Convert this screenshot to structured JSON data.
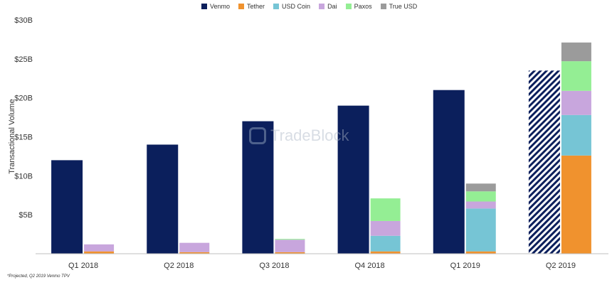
{
  "legend": {
    "items": [
      {
        "label": "Venmo",
        "color": "#0b1f5c"
      },
      {
        "label": "Tether",
        "color": "#f0922e"
      },
      {
        "label": "USD Coin",
        "color": "#76c5d5"
      },
      {
        "label": "Dai",
        "color": "#c8a6dd"
      },
      {
        "label": "Paxos",
        "color": "#94ee94"
      },
      {
        "label": "True USD",
        "color": "#9b9b9b"
      }
    ]
  },
  "footnote": "*Projected, Q2 2019 Venmo TPV",
  "watermark": "TradeBlock",
  "chart_data": {
    "type": "bar",
    "title": "",
    "xlabel": "",
    "ylabel": "Transactional Volume",
    "ylim": [
      0,
      30
    ],
    "yticks": [
      "$30B",
      "$25B",
      "$20B",
      "$15B",
      "$10B",
      "$5B"
    ],
    "ytick_values": [
      30,
      25,
      20,
      15,
      10,
      5
    ],
    "categories": [
      "Q1 2018",
      "Q2 2018",
      "Q3 2018",
      "Q4 2018",
      "Q1 2019",
      "Q2 2019"
    ],
    "series": [
      {
        "name": "Venmo",
        "values": [
          12,
          14,
          17,
          19,
          21,
          23.5
        ],
        "projected": [
          false,
          false,
          false,
          false,
          false,
          true
        ],
        "color": "#0b1f5c"
      },
      {
        "name": "Tether",
        "values": [
          0.3,
          0.2,
          0.2,
          0.3,
          0.3,
          12.6
        ],
        "color": "#f0922e",
        "stack": "stablecoins"
      },
      {
        "name": "USD Coin",
        "values": [
          0,
          0,
          0,
          2,
          5.5,
          5.2
        ],
        "color": "#76c5d5",
        "stack": "stablecoins"
      },
      {
        "name": "Dai",
        "values": [
          0.9,
          1.2,
          1.6,
          1.9,
          0.9,
          3.1
        ],
        "color": "#c8a6dd",
        "stack": "stablecoins"
      },
      {
        "name": "Paxos",
        "values": [
          0,
          0,
          0.1,
          2.9,
          1.3,
          3.8
        ],
        "color": "#94ee94",
        "stack": "stablecoins"
      },
      {
        "name": "True USD",
        "values": [
          0,
          0,
          0,
          0,
          1,
          2.4
        ],
        "color": "#9b9b9b",
        "stack": "stablecoins"
      }
    ],
    "grid": false,
    "legend_position": "top-center"
  }
}
